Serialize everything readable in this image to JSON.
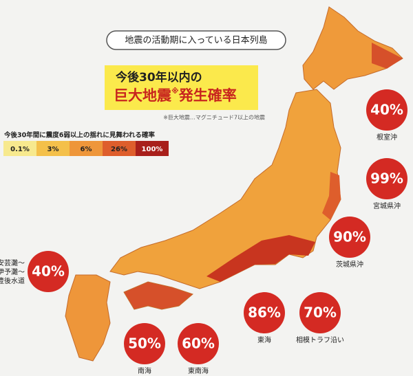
{
  "header": {
    "title": "地震の活動期に入っている日本列島"
  },
  "headline": {
    "line1": "今後30年以内の",
    "line2": "巨大地震",
    "mark": "※",
    "line2_rest": "発生確率",
    "note": "※巨大地震…マグニチュード7以上の地震"
  },
  "legend": {
    "title": "今後30年間に震度6弱以上の揺れに見舞われる確率",
    "items": [
      {
        "label": "0.1%",
        "color": "#f7e98e"
      },
      {
        "label": "3%",
        "color": "#f4c04a"
      },
      {
        "label": "6%",
        "color": "#ee963a"
      },
      {
        "label": "26%",
        "color": "#de5e2c"
      },
      {
        "label": "100%",
        "color": "#a81f1b"
      }
    ]
  },
  "regions": [
    {
      "value": "40%",
      "name": [
        "根室沖"
      ]
    },
    {
      "value": "99%",
      "name": [
        "宮城県沖"
      ]
    },
    {
      "value": "90%",
      "name": [
        "茨城県沖"
      ]
    },
    {
      "value": "86%",
      "name": [
        "東海"
      ]
    },
    {
      "value": "70%",
      "name": [
        "相模トラフ沿い"
      ]
    },
    {
      "value": "50%",
      "name": [
        "南海"
      ]
    },
    {
      "value": "60%",
      "name": [
        "東南海"
      ]
    },
    {
      "value": "40%",
      "name": [
        "安芸灘～",
        "伊予灘～",
        "豊後水道"
      ]
    }
  ]
}
